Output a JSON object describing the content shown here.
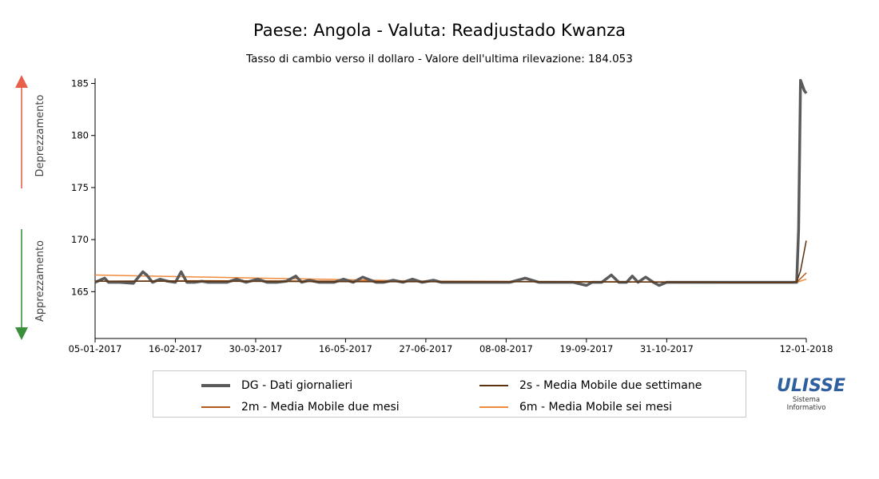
{
  "title": "Paese: Angola - Valuta: Readjustado Kwanza",
  "subtitle": "Tasso di cambio verso il dollaro - Valore dell'ultima rilevazione: 184.053",
  "side_labels": {
    "up": "Deprezzamento",
    "down": "Apprezzamento"
  },
  "colors": {
    "arrow_up": "#e8604c",
    "arrow_down": "#3a8f3a",
    "dg": "#5a5a5a",
    "ma2s": "#5a3210",
    "ma2m": "#b35a1a",
    "ma6m": "#f08a3c"
  },
  "legend": [
    {
      "key": "DG",
      "label": "DG - Dati giornalieri"
    },
    {
      "key": "2s",
      "label": "2s - Media Mobile due settimane"
    },
    {
      "key": "2m",
      "label": "2m - Media Mobile due mesi"
    },
    {
      "key": "6m",
      "label": "6m - Media Mobile sei mesi"
    }
  ],
  "logo": {
    "main": "ULISSE",
    "sub1": "Sistema",
    "sub2": "Informativo"
  },
  "chart_data": {
    "type": "line",
    "ylim": [
      160.5,
      185.5
    ],
    "yticks": [
      165,
      170,
      175,
      180,
      185
    ],
    "xlim": [
      "2017-01-05",
      "2018-01-12"
    ],
    "xticks": [
      "05-01-2017",
      "16-02-2017",
      "30-03-2017",
      "16-05-2017",
      "27-06-2017",
      "08-08-2017",
      "19-09-2017",
      "31-10-2017",
      "12-01-2018"
    ],
    "series": [
      {
        "name": "DG - Dati giornalieri",
        "key": "DG",
        "x": [
          "2017-01-05",
          "2017-01-10",
          "2017-01-12",
          "2017-01-18",
          "2017-01-25",
          "2017-01-30",
          "2017-02-01",
          "2017-02-04",
          "2017-02-08",
          "2017-02-12",
          "2017-02-16",
          "2017-02-19",
          "2017-02-22",
          "2017-02-26",
          "2017-03-02",
          "2017-03-05",
          "2017-03-15",
          "2017-03-20",
          "2017-03-25",
          "2017-03-31",
          "2017-04-05",
          "2017-04-10",
          "2017-04-15",
          "2017-04-20",
          "2017-04-23",
          "2017-04-27",
          "2017-05-02",
          "2017-05-10",
          "2017-05-15",
          "2017-05-20",
          "2017-05-25",
          "2017-06-01",
          "2017-06-05",
          "2017-06-10",
          "2017-06-15",
          "2017-06-20",
          "2017-06-25",
          "2017-07-01",
          "2017-07-05",
          "2017-07-12",
          "2017-07-20",
          "2017-07-31",
          "2017-08-10",
          "2017-08-18",
          "2017-08-25",
          "2017-08-28",
          "2017-09-05",
          "2017-09-12",
          "2017-09-19",
          "2017-09-22",
          "2017-09-27",
          "2017-10-02",
          "2017-10-06",
          "2017-10-10",
          "2017-10-13",
          "2017-10-16",
          "2017-10-20",
          "2017-10-24",
          "2017-10-27",
          "2017-10-31",
          "2017-11-05",
          "2017-11-15",
          "2017-11-30",
          "2017-12-15",
          "2017-12-31",
          "2018-01-05",
          "2018-01-07",
          "2018-01-08",
          "2018-01-09",
          "2018-01-11",
          "2018-01-12"
        ],
        "y": [
          165.9,
          166.3,
          165.9,
          165.9,
          165.8,
          166.9,
          166.6,
          165.9,
          166.2,
          166.0,
          165.9,
          166.9,
          165.9,
          165.9,
          166.0,
          165.9,
          165.9,
          166.2,
          165.9,
          166.2,
          165.9,
          165.9,
          166.0,
          166.5,
          165.9,
          166.1,
          165.9,
          165.9,
          166.2,
          165.9,
          166.4,
          165.9,
          165.9,
          166.1,
          165.9,
          166.2,
          165.9,
          166.1,
          165.9,
          165.9,
          165.9,
          165.9,
          165.9,
          166.3,
          165.9,
          165.9,
          165.9,
          165.9,
          165.6,
          165.9,
          165.9,
          166.6,
          165.9,
          165.9,
          166.5,
          165.9,
          166.4,
          165.9,
          165.6,
          165.9,
          165.9,
          165.9,
          165.9,
          165.9,
          165.9,
          165.9,
          165.9,
          171.0,
          185.3,
          184.3,
          184.05
        ]
      },
      {
        "name": "2s - Media Mobile due settimane",
        "key": "2s",
        "x": [
          "2017-01-05",
          "2017-03-01",
          "2017-06-01",
          "2017-09-01",
          "2017-12-01",
          "2018-01-05",
          "2018-01-07",
          "2018-01-09",
          "2018-01-12"
        ],
        "y": [
          166.0,
          166.0,
          165.95,
          165.95,
          165.9,
          165.9,
          165.95,
          167.0,
          169.9
        ]
      },
      {
        "name": "2m - Media Mobile due mesi",
        "key": "2m",
        "x": [
          "2017-01-05",
          "2017-03-01",
          "2017-06-01",
          "2017-09-01",
          "2017-12-01",
          "2018-01-07",
          "2018-01-12"
        ],
        "y": [
          166.0,
          166.05,
          166.0,
          165.95,
          165.9,
          165.9,
          166.8
        ]
      },
      {
        "name": "6m - Media Mobile sei mesi",
        "key": "6m",
        "x": [
          "2017-01-05",
          "2017-04-01",
          "2017-07-01",
          "2017-10-01",
          "2018-01-07",
          "2018-01-12"
        ],
        "y": [
          166.6,
          166.3,
          166.0,
          165.95,
          165.9,
          166.2
        ]
      }
    ]
  }
}
